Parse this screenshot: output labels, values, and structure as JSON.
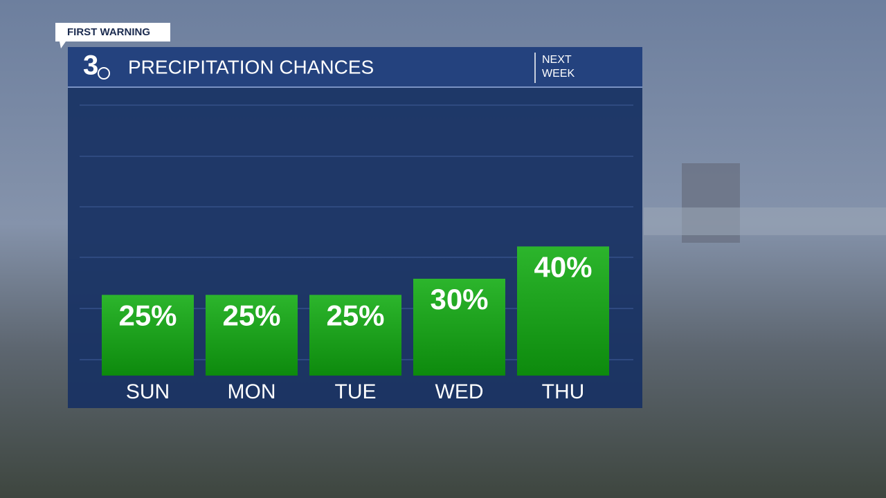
{
  "badge": "FIRST WARNING",
  "logo": "3",
  "period": [
    "NEXT",
    "WEEK"
  ],
  "chart_data": {
    "type": "bar",
    "title": "PRECIPITATION CHANCES",
    "categories": [
      "SUN",
      "MON",
      "TUE",
      "WED",
      "THU"
    ],
    "values": [
      25,
      25,
      25,
      30,
      40
    ],
    "value_labels": [
      "25%",
      "25%",
      "25%",
      "30%",
      "40%"
    ],
    "color": "#1a9e1a",
    "ylim": [
      0,
      60
    ]
  }
}
